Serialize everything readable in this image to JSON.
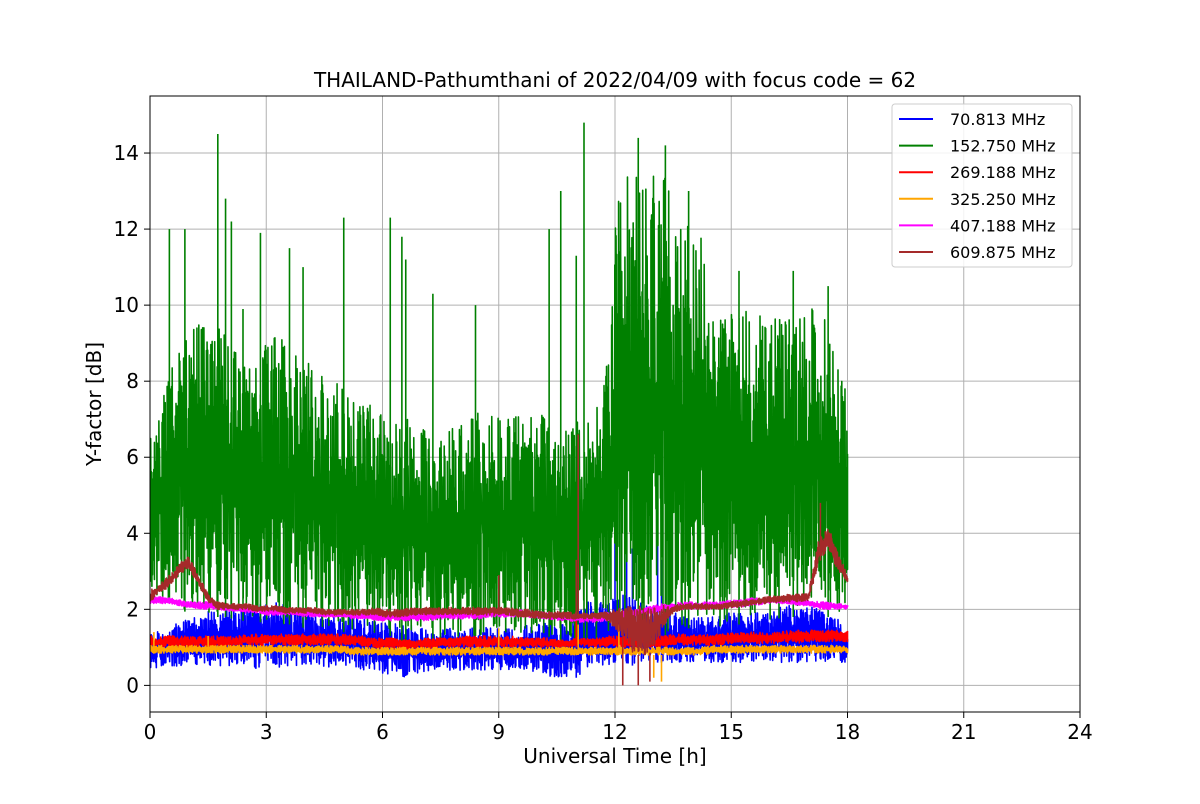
{
  "chart_data": {
    "type": "line",
    "title": "THAILAND-Pathumthani of 2022/04/09 with focus code = 62",
    "xlabel": "Universal Time [h]",
    "ylabel": "Y-factor [dB]",
    "xlim": [
      0,
      24
    ],
    "ylim": [
      -0.7,
      15.5
    ],
    "x_ticks": [
      0,
      3,
      6,
      9,
      12,
      15,
      18,
      21,
      24
    ],
    "y_ticks": [
      0,
      2,
      4,
      6,
      8,
      10,
      12,
      14
    ],
    "grid": true,
    "legend_position": "top-right",
    "x_sample_step_h": 0.25,
    "series": [
      {
        "name": " 70.813 MHz",
        "color": "#0000ff",
        "x_start": 0,
        "x_end": 18,
        "low": [
          0.4,
          0.5,
          0.5,
          0.5,
          0.6,
          0.5,
          0.5,
          0.5,
          0.5,
          0.5,
          0.5,
          0.4,
          0.5,
          0.5,
          0.4,
          0.5,
          0.5,
          0.5,
          0.4,
          0.5,
          0.5,
          0.5,
          0.4,
          0.4,
          0.3,
          0.3,
          0.2,
          0.3,
          0.3,
          0.4,
          0.4,
          0.4,
          0.4,
          0.4,
          0.4,
          0.4,
          0.4,
          0.4,
          0.4,
          0.4,
          0.3,
          0.3,
          0.1,
          0.2,
          0.2,
          0.4,
          0.5,
          0.5,
          0.6,
          0.6,
          0.5,
          0.6,
          0.6,
          0.6,
          0.6,
          0.6,
          0.6,
          0.6,
          0.6,
          0.6,
          0.6,
          0.6,
          0.6,
          0.6,
          0.6,
          0.6,
          0.6,
          0.6,
          0.6,
          0.6,
          0.6,
          0.6,
          0.6
        ],
        "high": [
          1.4,
          1.5,
          1.5,
          1.7,
          1.8,
          1.8,
          2.0,
          2.0,
          2.1,
          2.0,
          2.1,
          2.2,
          2.2,
          2.2,
          2.1,
          2.0,
          2.0,
          1.9,
          1.8,
          1.8,
          1.8,
          1.9,
          1.8,
          1.7,
          1.7,
          1.7,
          1.6,
          1.6,
          1.6,
          1.5,
          1.5,
          1.5,
          1.5,
          1.5,
          1.6,
          1.6,
          1.5,
          1.5,
          1.5,
          1.6,
          1.6,
          1.7,
          1.6,
          1.6,
          1.9,
          2.2,
          2.2,
          2.2,
          2.3,
          2.4,
          2.4,
          2.2,
          2.0,
          1.9,
          1.9,
          1.9,
          1.8,
          1.8,
          1.8,
          1.9,
          1.9,
          1.9,
          1.9,
          2.0,
          2.0,
          2.1,
          2.1,
          2.1,
          2.1,
          2.0,
          1.9,
          1.8,
          1.4
        ],
        "spikes": [
          [
            11.0,
            4.1
          ],
          [
            12.0,
            6.3
          ],
          [
            12.3,
            3.9
          ],
          [
            12.45,
            3.6
          ],
          [
            13.1,
            5.7
          ],
          [
            13.2,
            3.3
          ]
        ]
      },
      {
        "name": "152.750 MHz",
        "color": "#008000",
        "x_start": 0,
        "x_end": 18,
        "low": [
          2.5,
          2.3,
          2.2,
          2.0,
          1.9,
          1.9,
          1.8,
          1.8,
          1.8,
          1.7,
          1.7,
          1.7,
          1.6,
          1.6,
          1.6,
          1.6,
          1.5,
          1.5,
          1.5,
          1.4,
          1.4,
          1.4,
          1.4,
          1.3,
          1.3,
          1.3,
          1.1,
          1.0,
          1.1,
          1.2,
          1.2,
          1.3,
          1.3,
          1.3,
          1.3,
          1.4,
          1.3,
          1.3,
          1.3,
          1.3,
          1.3,
          1.3,
          1.2,
          1.1,
          1.1,
          1.1,
          1.1,
          1.2,
          1.3,
          1.3,
          1.3,
          1.2,
          1.2,
          1.3,
          1.4,
          1.5,
          1.5,
          1.5,
          1.5,
          1.5,
          1.6,
          1.6,
          1.6,
          1.6,
          1.7,
          1.7,
          1.8,
          1.8,
          1.8,
          1.8,
          1.8,
          1.8,
          2.0
        ],
        "high": [
          7.0,
          7.2,
          8.4,
          9.0,
          9.2,
          9.6,
          9.5,
          9.7,
          9.5,
          8.8,
          8.6,
          8.6,
          9.0,
          9.4,
          9.0,
          8.9,
          8.5,
          8.4,
          8.2,
          8.1,
          7.8,
          7.5,
          7.4,
          7.4,
          7.3,
          7.0,
          7.0,
          7.0,
          6.9,
          6.9,
          6.7,
          6.8,
          6.8,
          7.1,
          7.3,
          7.2,
          7.2,
          7.2,
          7.2,
          7.2,
          7.2,
          7.0,
          6.8,
          6.8,
          7.0,
          7.2,
          7.8,
          8.2,
          12.5,
          13.4,
          13.6,
          13.5,
          13.4,
          13.8,
          12.5,
          12.2,
          12.1,
          12.0,
          10.0,
          9.6,
          9.8,
          10.0,
          10.2,
          9.9,
          9.8,
          9.8,
          9.8,
          10.0,
          10.0,
          9.8,
          9.6,
          9.3,
          7.6
        ],
        "spikes": [
          [
            0.5,
            12.0
          ],
          [
            0.9,
            12.0
          ],
          [
            1.75,
            14.5
          ],
          [
            1.95,
            12.8
          ],
          [
            2.1,
            12.2
          ],
          [
            2.4,
            9.9
          ],
          [
            2.85,
            11.9
          ],
          [
            3.6,
            11.5
          ],
          [
            3.95,
            11.0
          ],
          [
            5.0,
            12.3
          ],
          [
            6.2,
            12.3
          ],
          [
            6.5,
            11.8
          ],
          [
            6.6,
            11.2
          ],
          [
            7.3,
            10.3
          ],
          [
            8.4,
            10.0
          ],
          [
            10.3,
            12.0
          ],
          [
            10.6,
            13.0
          ],
          [
            11.2,
            14.8
          ],
          [
            11.0,
            11.3
          ],
          [
            12.6,
            14.4
          ],
          [
            13.3,
            14.2
          ],
          [
            13.9,
            13.0
          ],
          [
            15.2,
            10.9
          ],
          [
            16.6,
            10.9
          ],
          [
            17.5,
            10.5
          ]
        ]
      },
      {
        "name": "269.188 MHz",
        "color": "#ff0000",
        "x_start": 0,
        "x_end": 18,
        "low": [
          1.0,
          1.0,
          1.0,
          1.0,
          1.0,
          1.0,
          1.0,
          1.0,
          1.0,
          1.0,
          1.05,
          1.05,
          1.05,
          1.05,
          1.05,
          1.05,
          1.05,
          1.05,
          1.05,
          1.05,
          1.05,
          1.05,
          1.0,
          1.0,
          0.95,
          0.95,
          0.95,
          0.95,
          0.95,
          0.95,
          1.0,
          1.0,
          1.0,
          1.0,
          1.0,
          1.0,
          1.0,
          1.0,
          1.0,
          1.0,
          1.0,
          1.0,
          1.0,
          1.0,
          1.0,
          1.0,
          1.0,
          1.0,
          1.0,
          1.0,
          1.0,
          1.0,
          1.0,
          1.0,
          1.05,
          1.05,
          1.05,
          1.05,
          1.05,
          1.05,
          1.1,
          1.1,
          1.1,
          1.1,
          1.1,
          1.1,
          1.1,
          1.1,
          1.15,
          1.15,
          1.15,
          1.15,
          1.15
        ],
        "high": [
          1.3,
          1.3,
          1.3,
          1.3,
          1.3,
          1.3,
          1.3,
          1.3,
          1.3,
          1.3,
          1.35,
          1.35,
          1.35,
          1.35,
          1.35,
          1.35,
          1.35,
          1.35,
          1.35,
          1.35,
          1.35,
          1.3,
          1.3,
          1.25,
          1.25,
          1.25,
          1.2,
          1.2,
          1.25,
          1.25,
          1.25,
          1.25,
          1.3,
          1.3,
          1.3,
          1.3,
          1.3,
          1.3,
          1.3,
          1.25,
          1.25,
          1.25,
          1.2,
          1.2,
          1.25,
          1.25,
          1.25,
          1.3,
          1.3,
          1.3,
          1.3,
          1.3,
          1.3,
          1.3,
          1.35,
          1.35,
          1.35,
          1.35,
          1.35,
          1.35,
          1.4,
          1.4,
          1.4,
          1.4,
          1.4,
          1.4,
          1.45,
          1.45,
          1.45,
          1.45,
          1.45,
          1.45,
          1.45
        ],
        "spikes": [
          [
            11.0,
            1.8
          ],
          [
            12.1,
            1.4
          ]
        ]
      },
      {
        "name": "325.250 MHz",
        "color": "#ffa500",
        "x_start": 0,
        "x_end": 18,
        "low": [
          0.85,
          0.85,
          0.85,
          0.85,
          0.85,
          0.85,
          0.85,
          0.85,
          0.85,
          0.85,
          0.85,
          0.85,
          0.85,
          0.85,
          0.85,
          0.85,
          0.85,
          0.85,
          0.85,
          0.85,
          0.85,
          0.8,
          0.8,
          0.8,
          0.8,
          0.8,
          0.8,
          0.8,
          0.8,
          0.8,
          0.8,
          0.8,
          0.8,
          0.8,
          0.8,
          0.8,
          0.8,
          0.8,
          0.8,
          0.8,
          0.8,
          0.8,
          0.8,
          0.8,
          0.8,
          0.8,
          0.8,
          0.8,
          0.8,
          0.8,
          0.8,
          0.8,
          0.8,
          0.8,
          0.8,
          0.8,
          0.8,
          0.8,
          0.85,
          0.85,
          0.85,
          0.85,
          0.85,
          0.85,
          0.85,
          0.85,
          0.85,
          0.85,
          0.85,
          0.85,
          0.85,
          0.85,
          0.85
        ],
        "high": [
          1.05,
          1.05,
          1.05,
          1.05,
          1.05,
          1.05,
          1.05,
          1.05,
          1.05,
          1.05,
          1.05,
          1.05,
          1.05,
          1.05,
          1.05,
          1.05,
          1.05,
          1.05,
          1.05,
          1.05,
          1.05,
          1.0,
          1.0,
          1.0,
          1.0,
          1.0,
          1.0,
          1.0,
          1.0,
          1.0,
          1.0,
          1.0,
          1.0,
          1.0,
          1.0,
          1.0,
          1.0,
          1.0,
          1.0,
          1.0,
          1.0,
          1.0,
          1.0,
          1.0,
          1.0,
          1.0,
          1.0,
          1.0,
          1.0,
          1.0,
          1.0,
          1.0,
          1.0,
          1.0,
          1.0,
          1.0,
          1.0,
          1.0,
          1.05,
          1.05,
          1.05,
          1.05,
          1.05,
          1.05,
          1.05,
          1.05,
          1.05,
          1.05,
          1.05,
          1.05,
          1.05,
          1.05,
          1.05
        ],
        "spikes": [
          [
            0.1,
            1.4
          ],
          [
            1.5,
            1.3
          ],
          [
            9.0,
            1.5
          ],
          [
            11.05,
            1.6
          ],
          [
            12.1,
            1.6
          ],
          [
            13.0,
            0.2
          ],
          [
            13.2,
            0.1
          ]
        ]
      },
      {
        "name": "407.188 MHz",
        "color": "#ff00ff",
        "x_start": 0,
        "x_end": 18,
        "low": [
          2.15,
          2.15,
          2.15,
          2.1,
          2.05,
          2.0,
          2.0,
          2.0,
          1.95,
          1.95,
          1.9,
          1.9,
          1.85,
          1.85,
          1.85,
          1.85,
          1.8,
          1.8,
          1.8,
          1.8,
          1.8,
          1.75,
          1.75,
          1.7,
          1.7,
          1.7,
          1.7,
          1.7,
          1.7,
          1.7,
          1.75,
          1.75,
          1.75,
          1.75,
          1.75,
          1.8,
          1.8,
          1.8,
          1.8,
          1.8,
          1.75,
          1.75,
          1.7,
          1.7,
          1.65,
          1.65,
          1.65,
          1.7,
          1.75,
          1.75,
          1.8,
          1.85,
          1.9,
          1.95,
          1.95,
          2.0,
          2.0,
          2.0,
          2.0,
          2.0,
          2.05,
          2.05,
          2.1,
          2.1,
          2.15,
          2.15,
          2.15,
          2.1,
          2.1,
          2.0,
          2.0,
          2.0,
          2.0
        ],
        "high": [
          2.35,
          2.35,
          2.3,
          2.25,
          2.2,
          2.2,
          2.2,
          2.15,
          2.1,
          2.1,
          2.05,
          2.05,
          2.0,
          2.0,
          2.0,
          2.0,
          2.0,
          1.95,
          1.95,
          1.95,
          1.95,
          1.9,
          1.9,
          1.9,
          1.9,
          1.9,
          1.9,
          1.9,
          1.9,
          1.9,
          1.95,
          1.95,
          1.95,
          1.95,
          1.95,
          2.0,
          2.0,
          2.0,
          2.0,
          1.95,
          1.95,
          1.9,
          1.9,
          1.85,
          1.85,
          1.85,
          1.85,
          1.9,
          1.95,
          1.95,
          2.0,
          2.05,
          2.1,
          2.15,
          2.15,
          2.2,
          2.2,
          2.2,
          2.2,
          2.2,
          2.25,
          2.25,
          2.3,
          2.3,
          2.3,
          2.3,
          2.3,
          2.25,
          2.25,
          2.2,
          2.2,
          2.15,
          2.15
        ],
        "spikes": []
      },
      {
        "name": "609.875 MHz",
        "color": "#a52a2a",
        "x_start": 0,
        "x_end": 18,
        "low": [
          2.2,
          2.4,
          2.6,
          2.9,
          3.1,
          2.6,
          2.2,
          2.0,
          2.0,
          2.0,
          2.0,
          1.95,
          1.95,
          1.95,
          1.9,
          1.9,
          1.9,
          1.9,
          1.85,
          1.85,
          1.85,
          1.85,
          1.85,
          1.85,
          1.8,
          1.8,
          1.8,
          1.85,
          1.85,
          1.85,
          1.85,
          1.85,
          1.85,
          1.85,
          1.85,
          1.85,
          1.85,
          1.85,
          1.8,
          1.8,
          1.75,
          1.75,
          1.75,
          1.75,
          1.75,
          1.75,
          1.75,
          1.75,
          1.5,
          1.2,
          0.8,
          0.8,
          0.9,
          1.5,
          1.9,
          2.0,
          2.0,
          2.0,
          2.0,
          2.0,
          2.05,
          2.05,
          2.1,
          2.15,
          2.15,
          2.2,
          2.2,
          2.2,
          2.2,
          3.2,
          3.6,
          3.0,
          2.7
        ],
        "high": [
          2.5,
          2.7,
          2.9,
          3.2,
          3.4,
          2.9,
          2.4,
          2.2,
          2.15,
          2.15,
          2.15,
          2.1,
          2.1,
          2.1,
          2.05,
          2.05,
          2.05,
          2.05,
          2.0,
          2.0,
          2.0,
          2.0,
          2.0,
          2.05,
          2.0,
          2.0,
          2.0,
          2.05,
          2.05,
          2.05,
          2.05,
          2.05,
          2.05,
          2.05,
          2.05,
          2.05,
          2.05,
          2.05,
          2.0,
          2.0,
          1.95,
          1.95,
          1.95,
          1.95,
          1.9,
          1.9,
          1.9,
          1.95,
          2.0,
          2.1,
          2.1,
          2.1,
          2.1,
          2.1,
          2.1,
          2.15,
          2.15,
          2.15,
          2.15,
          2.15,
          2.2,
          2.25,
          2.25,
          2.3,
          2.35,
          2.35,
          2.4,
          2.4,
          2.5,
          3.8,
          4.2,
          3.5,
          2.9
        ],
        "spikes": [
          [
            9.0,
            2.9
          ],
          [
            11.05,
            6.6
          ],
          [
            11.0,
            3.3
          ],
          [
            12.2,
            0.0
          ],
          [
            12.6,
            0.0
          ],
          [
            12.9,
            0.1
          ],
          [
            17.3,
            4.8
          ]
        ]
      }
    ]
  }
}
